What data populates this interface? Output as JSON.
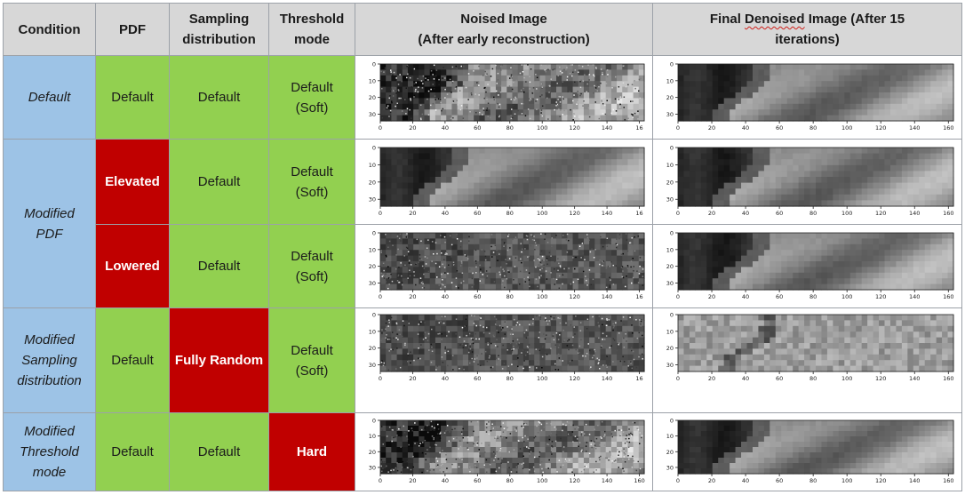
{
  "headers": {
    "condition": "Condition",
    "pdf": "PDF",
    "sampling_line1": "Sampling",
    "sampling_line2": "distribution",
    "threshold_line1": "Threshold",
    "threshold_line2": "mode",
    "noised_line1": "Noised Image",
    "noised_line2": "(After early reconstruction)",
    "final_pre": "Final ",
    "final_denoised": "Denoised",
    "final_post": " Image (After 15",
    "final_line2": "iterations)"
  },
  "conditions": {
    "default": "Default",
    "modified_pdf_line1": "Modified",
    "modified_pdf_line2": "PDF",
    "modified_sampling_line1": "Modified",
    "modified_sampling_line2": "Sampling",
    "modified_sampling_line3": "distribution",
    "modified_threshold_line1": "Modified",
    "modified_threshold_line2": "Threshold",
    "modified_threshold_line3": "mode"
  },
  "rows": {
    "r1": {
      "pdf": "Default",
      "sampling": "Default",
      "threshold_line1": "Default",
      "threshold_line2": "(Soft)"
    },
    "r2": {
      "pdf": "Elevated",
      "sampling": "Default",
      "threshold_line1": "Default",
      "threshold_line2": "(Soft)"
    },
    "r3": {
      "pdf": "Lowered",
      "sampling": "Default",
      "threshold_line1": "Default",
      "threshold_line2": "(Soft)"
    },
    "r4": {
      "pdf": "Default",
      "sampling": "Fully Random",
      "threshold_line1": "Default",
      "threshold_line2": "(Soft)"
    },
    "r5": {
      "pdf": "Default",
      "sampling": "Default",
      "threshold": "Hard"
    }
  },
  "plot_axes": {
    "y_ticks": [
      "0",
      "10",
      "20",
      "30"
    ],
    "x_ticks_noised": [
      "0",
      "20",
      "40",
      "60",
      "80",
      "100",
      "120",
      "140",
      "16"
    ],
    "x_ticks_full": [
      "0",
      "20",
      "40",
      "60",
      "80",
      "100",
      "120",
      "140",
      "160"
    ]
  },
  "plots": [
    {
      "id": "p1n",
      "ticks": "x_ticks_noised",
      "style": "noisy-mild"
    },
    {
      "id": "p1f",
      "ticks": "x_ticks_full",
      "style": "clean"
    },
    {
      "id": "p2n",
      "ticks": "x_ticks_noised",
      "style": "clean"
    },
    {
      "id": "p2f",
      "ticks": "x_ticks_full",
      "style": "clean"
    },
    {
      "id": "p3n",
      "ticks": "x_ticks_noised",
      "style": "noisy-heavy"
    },
    {
      "id": "p3f",
      "ticks": "x_ticks_full",
      "style": "clean"
    },
    {
      "id": "p4n",
      "ticks": "x_ticks_noised",
      "style": "noisy-heavy"
    },
    {
      "id": "p4f",
      "ticks": "x_ticks_full",
      "style": "blocky"
    },
    {
      "id": "p5n",
      "ticks": "x_ticks_full",
      "style": "noisy-mild"
    },
    {
      "id": "p5f",
      "ticks": "x_ticks_full",
      "style": "clean"
    }
  ],
  "colors": {
    "header": "#d7d7d7",
    "condition": "#9dc3e6",
    "default": "#92d050",
    "modified": "#c00000",
    "border": "#9ca1a8"
  }
}
